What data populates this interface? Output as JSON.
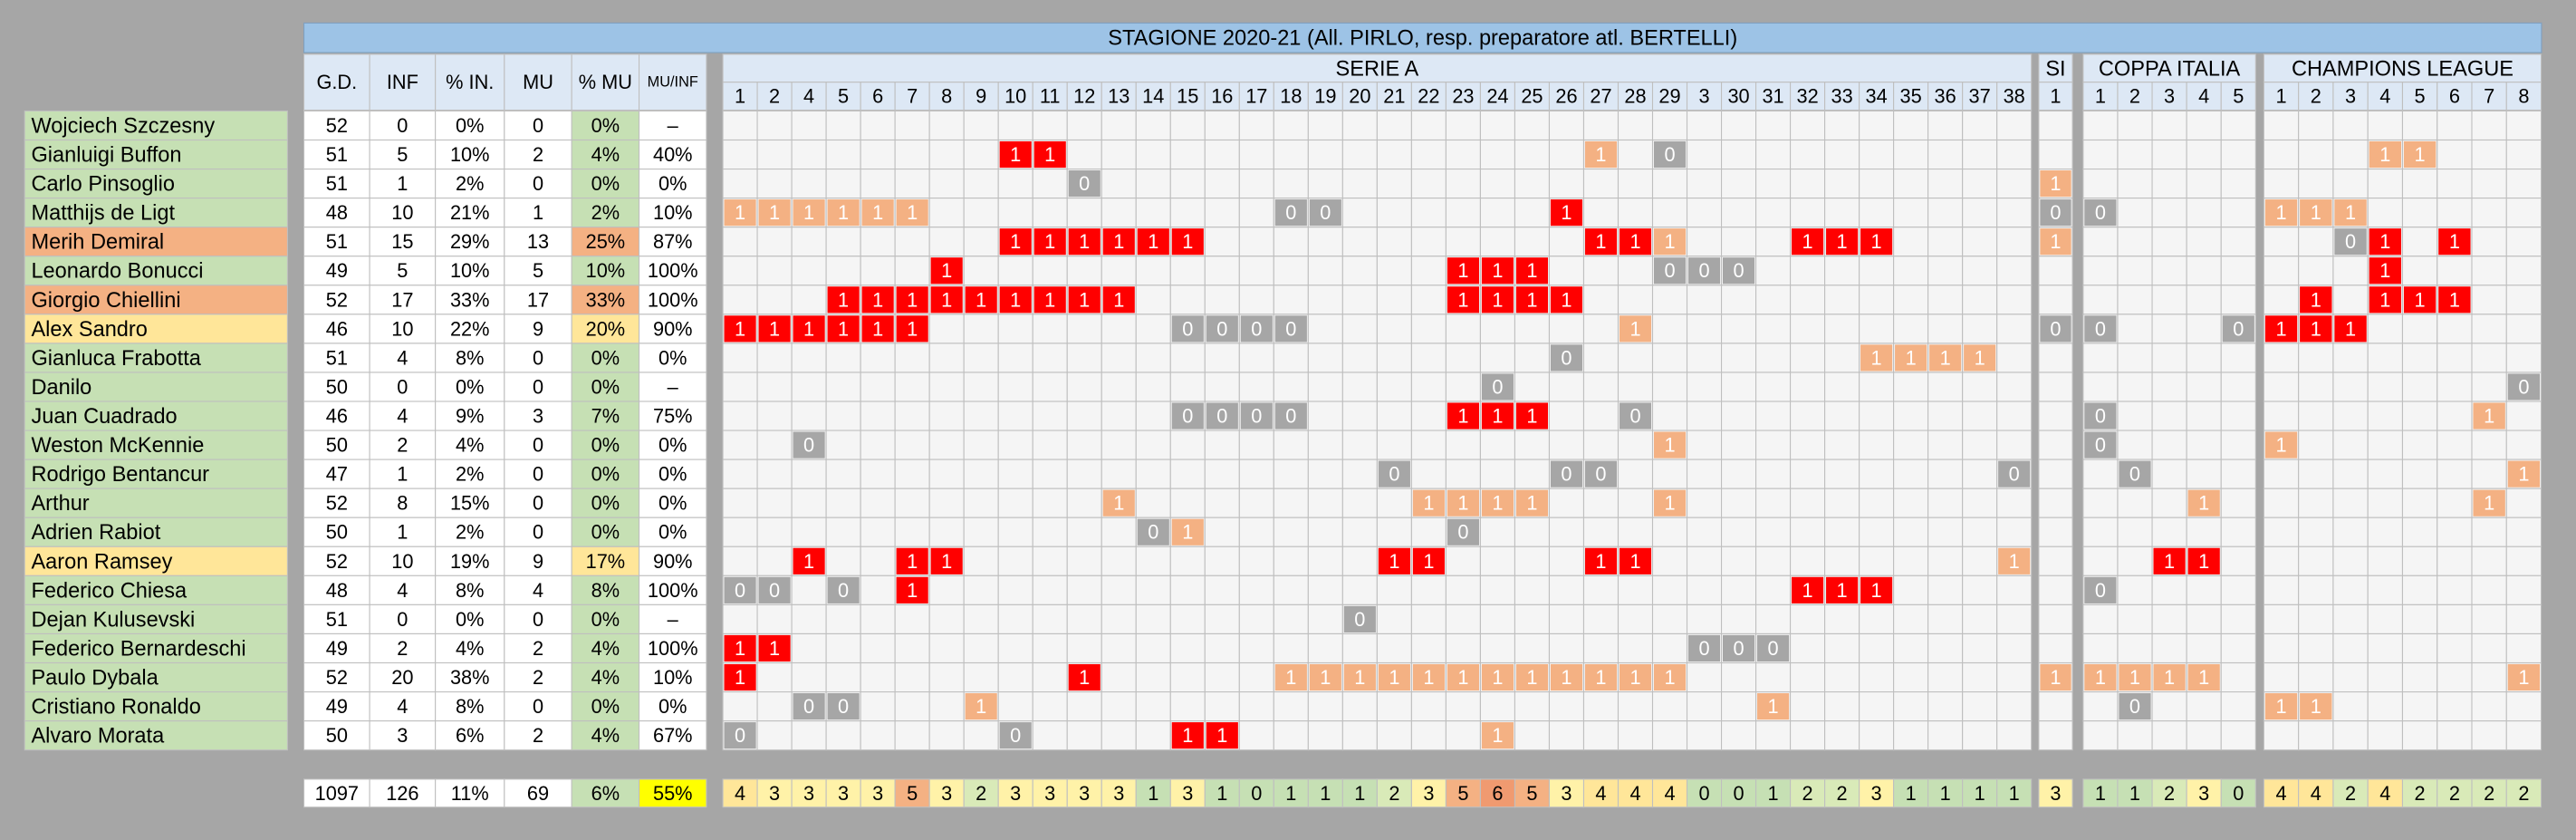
{
  "title": "STAGIONE 2020-21 (All. PIRLO, resp. preparatore atl. BERTELLI)",
  "stat_headers": [
    "G.D.",
    "INF",
    "% IN.",
    "MU",
    "% MU",
    "MU/INF"
  ],
  "marks": {
    "r": {
      "text": "1",
      "color": "#ff0000"
    },
    "o": {
      "text": "1",
      "color": "#f4b183"
    },
    "g": {
      "text": "0",
      "color": "#a6a6a6"
    }
  },
  "count_colors": [
    "#c6e0b4",
    "#c6e0b4",
    "#d9eab8",
    "#fff2a8",
    "#ffe699",
    "#f4b183",
    "#f09a70"
  ],
  "competitions": [
    {
      "name": "SERIE A",
      "rounds": [
        1,
        2,
        4,
        5,
        6,
        7,
        8,
        9,
        10,
        11,
        12,
        13,
        14,
        15,
        16,
        17,
        18,
        19,
        20,
        21,
        22,
        23,
        24,
        25,
        26,
        27,
        28,
        29,
        3,
        30,
        31,
        32,
        33,
        34,
        35,
        36,
        37,
        38
      ],
      "totals": [
        4,
        3,
        3,
        3,
        3,
        5,
        3,
        2,
        3,
        3,
        3,
        3,
        1,
        3,
        1,
        0,
        1,
        1,
        1,
        2,
        3,
        5,
        6,
        5,
        3,
        4,
        4,
        4,
        0,
        0,
        1,
        2,
        2,
        3,
        1,
        1,
        1,
        1
      ]
    },
    {
      "name": "SI",
      "rounds": [
        1
      ],
      "totals": [
        3
      ]
    },
    {
      "name": "COPPA ITALIA",
      "rounds": [
        1,
        2,
        3,
        4,
        5
      ],
      "totals": [
        1,
        1,
        2,
        3,
        0
      ]
    },
    {
      "name": "CHAMPIONS LEAGUE",
      "rounds": [
        1,
        2,
        3,
        4,
        5,
        6,
        7,
        8
      ],
      "totals": [
        4,
        4,
        2,
        4,
        2,
        2,
        2,
        2
      ]
    }
  ],
  "totals": {
    "stats": [
      "1097",
      "126",
      "11%",
      "69",
      "6%",
      "55%"
    ],
    "colors": [
      "#ffffff",
      "#ffffff",
      "#ffffff",
      "#ffffff",
      "#c6e0b4",
      "#ffff00"
    ]
  },
  "rows": [
    {
      "name": "Wojciech Szczesny",
      "color": "#c6e0b4",
      "stats": [
        "52",
        "0",
        "0%",
        "0",
        "0%",
        "–"
      ],
      "kinds": [
        "......................................",
        ".",
        ".....",
        "........"
      ]
    },
    {
      "name": "Gianluigi Buffon",
      "color": "#c6e0b4",
      "stats": [
        "51",
        "5",
        "10%",
        "2",
        "4%",
        "40%"
      ],
      "kinds": [
        "........rr...............o.g..........",
        ".",
        ".....",
        "...oo..."
      ]
    },
    {
      "name": "Carlo Pinsoglio",
      "color": "#c6e0b4",
      "stats": [
        "51",
        "1",
        "2%",
        "0",
        "0%",
        "0%"
      ],
      "kinds": [
        "..........g...........................",
        "o",
        ".....",
        "........"
      ]
    },
    {
      "name": "Matthijs de Ligt",
      "color": "#c6e0b4",
      "stats": [
        "48",
        "10",
        "21%",
        "1",
        "2%",
        "10%"
      ],
      "kinds": [
        "oooooo..........gg......r.............",
        "g",
        "g....",
        "ooo....."
      ]
    },
    {
      "name": "Merih Demiral",
      "color": "#f4b183",
      "stats": [
        "51",
        "15",
        "29%",
        "13",
        "25%",
        "87%"
      ],
      "kinds": [
        "........rrrrrr...........rro...rrr....",
        "o",
        ".....",
        "..gr.r.."
      ]
    },
    {
      "name": "Leonardo Bonucci",
      "color": "#c6e0b4",
      "stats": [
        "49",
        "5",
        "10%",
        "5",
        "10%",
        "100%"
      ],
      "kinds": [
        "......r..............rrr...ggg........",
        ".",
        ".....",
        "...r...."
      ]
    },
    {
      "name": "Giorgio Chiellini",
      "color": "#f4b183",
      "stats": [
        "52",
        "17",
        "33%",
        "17",
        "33%",
        "100%"
      ],
      "kinds": [
        "...rrrrrrrrr.........rrrr.............",
        ".",
        ".....",
        ".r.rrr.."
      ]
    },
    {
      "name": "Alex Sandro",
      "color": "#ffe699",
      "stats": [
        "46",
        "10",
        "22%",
        "9",
        "20%",
        "90%"
      ],
      "kinds": [
        "rrrrrr.......gggg.........o...........",
        "g",
        "g...g",
        "rrr....."
      ]
    },
    {
      "name": "Gianluca Frabotta",
      "color": "#c6e0b4",
      "stats": [
        "51",
        "4",
        "8%",
        "0",
        "0%",
        "0%"
      ],
      "kinds": [
        "........................g........oooo.",
        ".",
        ".....",
        "........"
      ]
    },
    {
      "name": "Danilo",
      "color": "#c6e0b4",
      "stats": [
        "50",
        "0",
        "0%",
        "0",
        "0%",
        "–"
      ],
      "kinds": [
        "......................g...............",
        ".",
        ".....",
        ".......g"
      ]
    },
    {
      "name": "Juan Cuadrado",
      "color": "#c6e0b4",
      "stats": [
        "46",
        "4",
        "9%",
        "3",
        "7%",
        "75%"
      ],
      "kinds": [
        ".............gggg....rrr..g...........",
        ".",
        "g....",
        "......o."
      ]
    },
    {
      "name": "Weston McKennie",
      "color": "#c6e0b4",
      "stats": [
        "50",
        "2",
        "4%",
        "0",
        "0%",
        "0%"
      ],
      "kinds": [
        "..g........................o..........",
        ".",
        "g....",
        "o......."
      ]
    },
    {
      "name": "Rodrigo Bentancur",
      "color": "#c6e0b4",
      "stats": [
        "47",
        "1",
        "2%",
        "0",
        "0%",
        "0%"
      ],
      "kinds": [
        "...................g....gg...........g",
        ".",
        ".g...",
        ".......o"
      ]
    },
    {
      "name": "Arthur",
      "color": "#c6e0b4",
      "stats": [
        "52",
        "8",
        "15%",
        "0",
        "0%",
        "0%"
      ],
      "kinds": [
        "...........o........oooo...o..........",
        ".",
        "...o.",
        "......o."
      ]
    },
    {
      "name": "Adrien Rabiot",
      "color": "#c6e0b4",
      "stats": [
        "50",
        "1",
        "2%",
        "0",
        "0%",
        "0%"
      ],
      "kinds": [
        "............go.......g................",
        ".",
        ".....",
        "........"
      ]
    },
    {
      "name": "Aaron Ramsey",
      "color": "#ffe699",
      "stats": [
        "52",
        "10",
        "19%",
        "9",
        "17%",
        "90%"
      ],
      "kinds": [
        "..r..rr............rr....rr..........o",
        ".",
        "..rr.",
        "........"
      ]
    },
    {
      "name": "Federico Chiesa",
      "color": "#c6e0b4",
      "stats": [
        "48",
        "4",
        "8%",
        "4",
        "8%",
        "100%"
      ],
      "kinds": [
        "gg.g.r.........................rrr....",
        ".",
        "g....",
        "........"
      ]
    },
    {
      "name": "Dejan Kulusevski",
      "color": "#c6e0b4",
      "stats": [
        "51",
        "0",
        "0%",
        "0",
        "0%",
        "–"
      ],
      "kinds": [
        "..................g...................",
        ".",
        ".....",
        "........"
      ]
    },
    {
      "name": "Federico Bernardeschi",
      "color": "#c6e0b4",
      "stats": [
        "49",
        "2",
        "4%",
        "2",
        "4%",
        "100%"
      ],
      "kinds": [
        "rr..........................ggg.......",
        ".",
        ".....",
        "........"
      ]
    },
    {
      "name": "Paulo Dybala",
      "color": "#c6e0b4",
      "stats": [
        "52",
        "20",
        "38%",
        "2",
        "4%",
        "10%"
      ],
      "kinds": [
        "r.........r.....oooooooooooo..........",
        "o",
        "oooo.",
        ".......o"
      ]
    },
    {
      "name": "Cristiano Ronaldo",
      "color": "#c6e0b4",
      "stats": [
        "49",
        "4",
        "8%",
        "0",
        "0%",
        "0%"
      ],
      "kinds": [
        "..gg...o......................o.......",
        ".",
        ".g...",
        "oo......"
      ]
    },
    {
      "name": "Alvaro Morata",
      "color": "#c6e0b4",
      "stats": [
        "50",
        "3",
        "6%",
        "2",
        "4%",
        "67%"
      ],
      "kinds": [
        "g.......g....rr.......o...............",
        ".",
        ".....",
        "........"
      ]
    }
  ]
}
